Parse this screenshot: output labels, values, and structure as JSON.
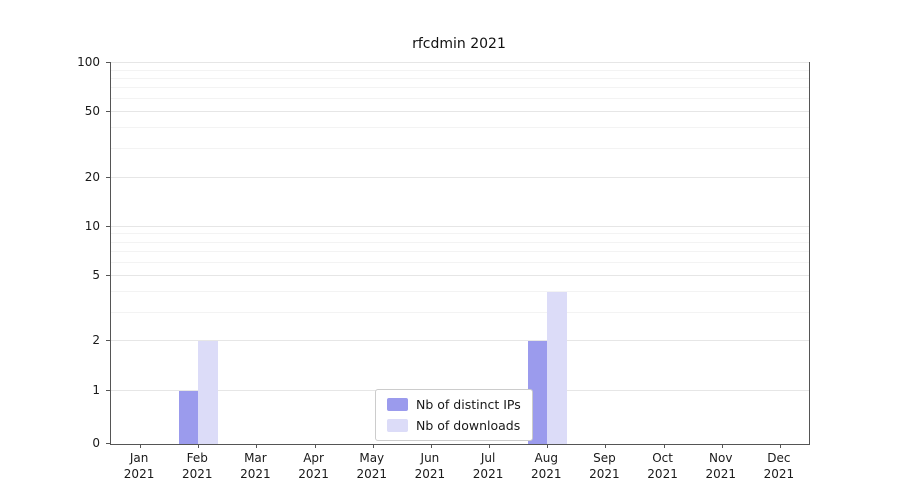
{
  "figure": {
    "title": "rfcdmin 2021"
  },
  "chart_data": {
    "type": "bar",
    "title": "rfcdmin 2021",
    "categories": [
      "Jan",
      "Feb",
      "Mar",
      "Apr",
      "May",
      "Jun",
      "Jul",
      "Aug",
      "Sep",
      "Oct",
      "Nov",
      "Dec"
    ],
    "year_label": "2021",
    "series": [
      {
        "name": "Nb of distinct IPs",
        "color": "#9b9bed",
        "values": [
          0,
          1,
          0,
          0,
          0,
          0,
          0,
          2,
          0,
          0,
          0,
          0
        ]
      },
      {
        "name": "Nb of downloads",
        "color": "#dcdcf8",
        "values": [
          0,
          2,
          0,
          0,
          0,
          0,
          0,
          4,
          0,
          0,
          0,
          0
        ]
      }
    ],
    "yscale": "symlog",
    "yticks": [
      0,
      1,
      2,
      5,
      10,
      20,
      50,
      100
    ],
    "minor_yticks": [
      3,
      4,
      6,
      7,
      8,
      9,
      30,
      40,
      60,
      70,
      80,
      90
    ],
    "ylim": [
      0,
      110
    ],
    "grid": true,
    "legend_position": "lower center",
    "colors": {
      "grid_major": "#e6e6e6",
      "grid_minor": "#f3f3f3",
      "axis": "#555555",
      "text": "#1a1a1a"
    }
  }
}
